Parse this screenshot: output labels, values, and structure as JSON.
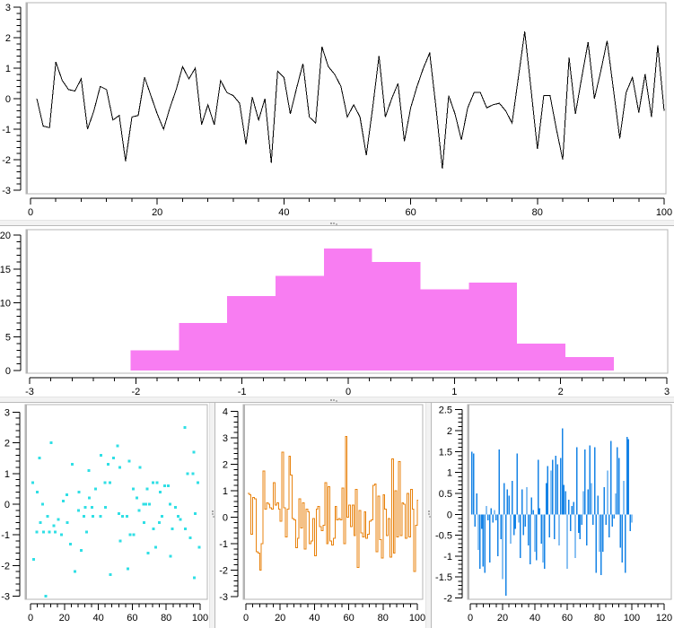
{
  "app": {
    "colors": {
      "background": "#ffffff",
      "canvas_border": "#b4b4b4",
      "axis": "#000000",
      "splitter": "#f2f2f2"
    }
  },
  "chart_data": [
    {
      "type": "line",
      "title": "",
      "xlabel": "",
      "ylabel": "",
      "color": "#000000",
      "xlim": [
        0,
        100
      ],
      "ylim": [
        -3,
        3
      ],
      "x_ticks": {
        "values": [
          0,
          20,
          40,
          60,
          80,
          100
        ],
        "labels": [
          "0",
          "20",
          "40",
          "60",
          "80",
          "100"
        ]
      },
      "y_ticks": {
        "values": [
          3,
          2,
          1,
          0,
          -1,
          -2,
          -3
        ],
        "labels": [
          "3",
          "2",
          "1",
          "0",
          "-1",
          "-2",
          "-3"
        ]
      },
      "x_minor": 4,
      "y_minor": 0.2,
      "x_start": 1,
      "values": [
        0,
        -0.9,
        -0.95,
        1.2,
        0.6,
        0.3,
        0.25,
        0.65,
        -1.0,
        -0.4,
        0.4,
        0.3,
        -0.7,
        -0.55,
        -2.05,
        -0.6,
        -0.55,
        0.7,
        0.1,
        -0.5,
        -1.0,
        -0.3,
        0.3,
        1.05,
        0.65,
        1.0,
        -0.85,
        -0.2,
        -0.85,
        0.6,
        0.2,
        0.1,
        -0.15,
        -1.5,
        0.05,
        -0.7,
        0.0,
        -2.1,
        0.9,
        0.7,
        -0.5,
        0.35,
        1.15,
        -0.6,
        -0.8,
        1.7,
        1.05,
        0.8,
        0.4,
        -0.6,
        -0.2,
        -0.6,
        -1.85,
        -0.3,
        1.4,
        -0.6,
        0.0,
        0.5,
        -1.4,
        -0.3,
        0.4,
        1.0,
        1.5,
        -0.3,
        -2.3,
        0.1,
        -0.5,
        -1.35,
        -0.3,
        0.2,
        0.2,
        -0.3,
        -0.2,
        -0.15,
        -0.4,
        -0.8,
        0.7,
        2.2,
        0.3,
        -1.65,
        0.1,
        0.1,
        -1.0,
        -2.0,
        1.35,
        -0.5,
        0.7,
        1.85,
        0.0,
        0.9,
        1.9,
        0.3,
        -1.3,
        0.2,
        0.7,
        -0.45,
        0.8,
        -0.6,
        1.75,
        -0.4
      ]
    },
    {
      "type": "histogram",
      "title": "",
      "color": "#f87df2",
      "xlim": [
        -3,
        3
      ],
      "ylim": [
        0,
        20
      ],
      "x_ticks": {
        "values": [
          -3,
          -2,
          -1,
          0,
          1,
          2,
          3
        ],
        "labels": [
          "-3",
          "-2",
          "-1",
          "0",
          "1",
          "2",
          "3"
        ]
      },
      "y_ticks": {
        "values": [
          20,
          15,
          10,
          5,
          0
        ],
        "labels": [
          "20",
          "15",
          "10",
          "5",
          "0"
        ]
      },
      "x_minor": 0.2,
      "y_minor": 1,
      "bin_edges": [
        -2.05,
        -1.595,
        -1.14,
        -0.685,
        -0.23,
        0.225,
        0.68,
        1.135,
        1.59,
        2.045,
        2.5
      ],
      "counts": [
        3,
        7,
        11,
        14,
        18,
        16,
        12,
        13,
        4,
        2
      ]
    },
    {
      "type": "scatter",
      "title": "",
      "color": "#30dfe5",
      "xlim": [
        0,
        100
      ],
      "ylim": [
        -3,
        3
      ],
      "x_ticks": {
        "values": [
          0,
          20,
          40,
          60,
          80,
          100
        ],
        "labels": [
          "0",
          "20",
          "40",
          "60",
          "80",
          "100"
        ]
      },
      "y_ticks": {
        "values": [
          3,
          2,
          1,
          0,
          -1,
          -2,
          -3
        ],
        "labels": [
          "3",
          "2",
          "1",
          "0",
          "-1",
          "-2",
          "-3"
        ]
      },
      "x_minor": 4,
      "y_minor": 0.2,
      "points": [
        [
          1.4,
          0.7
        ],
        [
          1.8,
          -1.8
        ],
        [
          3.7,
          -0.9
        ],
        [
          3.9,
          0.4
        ],
        [
          5.3,
          1.5
        ],
        [
          5.8,
          -0.6
        ],
        [
          7.1,
          0.0
        ],
        [
          7.6,
          -0.9
        ],
        [
          9.0,
          -3.0
        ],
        [
          10.1,
          -0.4
        ],
        [
          11.1,
          -0.9
        ],
        [
          12.3,
          2.0
        ],
        [
          13.8,
          -0.7
        ],
        [
          14.5,
          -0.9
        ],
        [
          16.4,
          -0.5
        ],
        [
          18.2,
          -1.0
        ],
        [
          19.4,
          0.1
        ],
        [
          21.3,
          0.3
        ],
        [
          21.7,
          -0.6
        ],
        [
          23.5,
          -1.3
        ],
        [
          24.7,
          1.3
        ],
        [
          26.1,
          -2.2
        ],
        [
          28.4,
          -0.2
        ],
        [
          28.7,
          0.4
        ],
        [
          29.8,
          -1.5
        ],
        [
          31.4,
          -0.4
        ],
        [
          32.3,
          -0.1
        ],
        [
          33.2,
          -0.9
        ],
        [
          34.4,
          1.1
        ],
        [
          34.6,
          0.2
        ],
        [
          36.2,
          -0.1
        ],
        [
          36.7,
          -0.4
        ],
        [
          38.4,
          0.5
        ],
        [
          41.4,
          -0.4
        ],
        [
          41.6,
          1.6
        ],
        [
          43.9,
          0.7
        ],
        [
          44.1,
          -0.1
        ],
        [
          45.7,
          1.3
        ],
        [
          46.9,
          0.7
        ],
        [
          47.0,
          -2.3
        ],
        [
          49.0,
          1.5
        ],
        [
          51.3,
          1.9
        ],
        [
          52.2,
          -0.3
        ],
        [
          52.6,
          1.2
        ],
        [
          52.9,
          -1.2
        ],
        [
          54.3,
          -0.4
        ],
        [
          57.0,
          -0.4
        ],
        [
          57.3,
          -2.1
        ],
        [
          58.2,
          1.4
        ],
        [
          58.7,
          -1.0
        ],
        [
          60.5,
          0.5
        ],
        [
          60.8,
          -1.0
        ],
        [
          62.6,
          0.2
        ],
        [
          64.0,
          -0.2
        ],
        [
          64.6,
          1.2
        ],
        [
          66.7,
          0.0
        ],
        [
          66.9,
          -0.6
        ],
        [
          68.1,
          0.0
        ],
        [
          68.8,
          0.5
        ],
        [
          69.3,
          -1.6
        ],
        [
          70.2,
          0.0
        ],
        [
          72.3,
          0.7
        ],
        [
          72.5,
          -0.8
        ],
        [
          73.9,
          -1.4
        ],
        [
          74.6,
          0.7
        ],
        [
          76.0,
          -0.6
        ],
        [
          76.4,
          0.4
        ],
        [
          77.6,
          -0.4
        ],
        [
          79.0,
          0.6
        ],
        [
          81.1,
          0.6
        ],
        [
          82.2,
          0.0
        ],
        [
          82.5,
          -1.7
        ],
        [
          83.6,
          -0.8
        ],
        [
          85.4,
          -0.1
        ],
        [
          87.1,
          -0.4
        ],
        [
          88.4,
          -0.5
        ],
        [
          91.0,
          2.5
        ],
        [
          91.4,
          -0.8
        ],
        [
          92.6,
          1.0
        ],
        [
          94.2,
          -1.1
        ],
        [
          95.8,
          1.0
        ],
        [
          96.3,
          1.7
        ],
        [
          96.6,
          -2.4
        ],
        [
          97.0,
          -0.3
        ],
        [
          98.6,
          0.7
        ],
        [
          99.5,
          -1.4
        ]
      ]
    },
    {
      "type": "step",
      "title": "",
      "color": "#e8830f",
      "xlim": [
        0,
        100
      ],
      "ylim": [
        -3,
        4
      ],
      "x_ticks": {
        "values": [
          0,
          20,
          40,
          60,
          80,
          100
        ],
        "labels": [
          "0",
          "20",
          "40",
          "60",
          "80",
          "100"
        ]
      },
      "y_ticks": {
        "values": [
          4,
          3,
          2,
          1,
          0,
          -1,
          -2,
          -3
        ],
        "labels": [
          "4",
          "3",
          "2",
          "1",
          "0",
          "-1",
          "-2",
          "-3"
        ]
      },
      "x_minor": 4,
      "y_minor": 0.2,
      "x_start": 1,
      "values": [
        0.9,
        0.85,
        -0.65,
        0.75,
        0.7,
        -1.3,
        -1.35,
        -2.0,
        -1.0,
        1.75,
        0.3,
        0.55,
        0.5,
        0.35,
        0.3,
        1.3,
        0.45,
        0.55,
        0.3,
        -0.15,
        2.45,
        0.35,
        -0.75,
        0.3,
        2.3,
        1.6,
        -0.05,
        -0.1,
        -1.15,
        -0.8,
        0.7,
        -0.4,
        0.55,
        -1.2,
        0.3,
        0.2,
        -1.0,
        -0.9,
        -0.05,
        -1.45,
        0.3,
        0.4,
        -0.35,
        -0.5,
        -0.3,
        1.3,
        -1.0,
        1.15,
        -0.9,
        -1.05,
        -0.8,
        0.4,
        -0.1,
        -0.05,
        -0.1,
        1.1,
        -1.0,
        3.05,
        0.0,
        0.45,
        -0.35,
        0.45,
        -0.7,
        1.05,
        -1.9,
        0.25,
        -0.6,
        -0.75,
        0.2,
        -0.8,
        -0.65,
        -0.15,
        -0.1,
        1.2,
        1.25,
        -1.3,
        0.8,
        -0.85,
        -1.55,
        0.85,
        0.3,
        -0.7,
        -0.05,
        -1.5,
        2.2,
        -1.35,
        1.0,
        -0.75,
        2.1,
        -0.7,
        0.55,
        0.5,
        -0.8,
        0.9,
        -0.75,
        1.05,
        0.3,
        -2.05,
        -0.3,
        0.65
      ]
    },
    {
      "type": "bars",
      "title": "",
      "color": "#1583e6",
      "xlim": [
        0,
        120
      ],
      "ylim": [
        -2,
        2.5
      ],
      "x_ticks": {
        "values": [
          0,
          20,
          40,
          60,
          80,
          100,
          120
        ],
        "labels": [
          "0",
          "20",
          "40",
          "60",
          "80",
          "100",
          "120"
        ]
      },
      "y_ticks": {
        "values": [
          2.5,
          2,
          1.5,
          1,
          0.5,
          0,
          -0.5,
          -1,
          -1.5,
          -2
        ],
        "labels": [
          "2.5",
          "2",
          "1.5",
          "1",
          "0.5",
          "0",
          "-0.5",
          "-1",
          "-1.5",
          "-2"
        ]
      },
      "x_minor": 4,
      "y_minor": 0.1,
      "x_start": 1,
      "values": [
        1.5,
        1.45,
        -0.3,
        0.5,
        -0.85,
        -1.3,
        -0.35,
        -1.25,
        -1.4,
        0.2,
        -0.15,
        -1.15,
        0.15,
        -0.2,
        0.1,
        -0.15,
        -1.0,
        1.55,
        -0.6,
        -1.55,
        0.75,
        -1.95,
        0.6,
        0.45,
        -0.7,
        0.8,
        -0.5,
        -0.35,
        1.45,
        -0.2,
        -1.05,
        0.6,
        -0.5,
        -0.3,
        0.65,
        -0.75,
        -1.2,
        0.4,
        0.1,
        -0.9,
        -1.1,
        1.3,
        0.15,
        -0.7,
        -1.15,
        -1.3,
        0.75,
        1.15,
        -0.55,
        1.05,
        1.3,
        -0.6,
        1.4,
        1.2,
        -0.75,
        1.35,
        2.05,
        0.7,
        0.55,
        -1.3,
        0.35,
        -0.4,
        0.2,
        0.3,
        -1.05,
        1.6,
        -0.45,
        -0.6,
        -0.25,
        0.55,
        1.55,
        -0.75,
        0.6,
        1.65,
        0.75,
        -0.25,
        1.6,
        -1.4,
        0.45,
        -0.9,
        -1.45,
        -0.9,
        0.65,
        -0.25,
        1.05,
        -0.55,
        1.75,
        -0.3,
        -0.1,
        0.5,
        1.6,
        1.35,
        -0.8,
        -1.15,
        0.8,
        -1.4,
        1.85,
        1.8,
        -0.4,
        -0.2
      ]
    }
  ]
}
